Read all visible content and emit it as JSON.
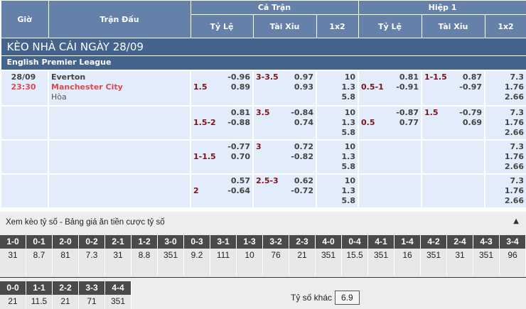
{
  "header": {
    "time": "Giờ",
    "match": "Trận Đấu",
    "full": "Cả Trận",
    "half": "Hiệp 1",
    "sub": [
      "Tỷ Lệ",
      "Tài Xỉu",
      "1x2",
      "Tỷ Lệ",
      "Tài Xỉu",
      "1x2"
    ]
  },
  "title": "KÈO NHÀ CÁI NGÀY 28/09",
  "league": "English Premier League",
  "match": {
    "date": "28/09",
    "time": "23:30",
    "home": "Everton",
    "away": "Manchester City",
    "draw": "Hòa"
  },
  "rows": [
    {
      "hc_line": "1.5",
      "hc_top": "-0.96",
      "hc_bot": "0.89",
      "ou_line": "3-3.5",
      "ou_top": "0.97",
      "ou_bot": "0.93",
      "x12": [
        "10",
        "1.3",
        "5.8"
      ],
      "h1_hc_line": "0.5-1",
      "h1_hc_top": "0.81",
      "h1_hc_bot": "-0.91",
      "h1_ou_line": "1-1.5",
      "h1_ou_top": "0.87",
      "h1_ou_bot": "-0.97",
      "h1_x12": [
        "7.3",
        "1.76",
        "2.66"
      ]
    },
    {
      "hc_line": "1.5-2",
      "hc_top": "0.81",
      "hc_bot": "-0.88",
      "ou_line": "3.5",
      "ou_top": "-0.84",
      "ou_bot": "0.74",
      "x12": [
        "10",
        "1.3",
        "5.8"
      ],
      "h1_hc_line": "0.5",
      "h1_hc_top": "-0.87",
      "h1_hc_bot": "0.77",
      "h1_ou_line": "1.5",
      "h1_ou_top": "-0.79",
      "h1_ou_bot": "0.69",
      "h1_x12": [
        "7.3",
        "1.76",
        "2.66"
      ]
    },
    {
      "hc_line": "1-1.5",
      "hc_top": "-0.77",
      "hc_bot": "0.70",
      "ou_line": "3",
      "ou_top": "0.72",
      "ou_bot": "-0.82",
      "x12": [
        "10",
        "1.3",
        "5.8"
      ],
      "h1_hc_line": "",
      "h1_hc_top": "",
      "h1_hc_bot": "",
      "h1_ou_line": "",
      "h1_ou_top": "",
      "h1_ou_bot": "",
      "h1_x12": [
        "7.3",
        "1.76",
        "2.66"
      ]
    },
    {
      "hc_line": "2",
      "hc_top": "0.57",
      "hc_bot": "-0.64",
      "ou_line": "2.5-3",
      "ou_top": "0.62",
      "ou_bot": "-0.72",
      "x12": [
        "10",
        "1.3",
        "5.8"
      ],
      "h1_hc_line": "",
      "h1_hc_top": "",
      "h1_hc_bot": "",
      "h1_ou_line": "",
      "h1_ou_top": "",
      "h1_ou_bot": "",
      "h1_x12": [
        "7.3",
        "1.76",
        "2.66"
      ]
    }
  ],
  "score": {
    "title": "Xem kèo tỷ số - Bảng giá ăn tiền cược tỷ số",
    "toggle_icon": "triangle-up",
    "row1": [
      [
        "1-0",
        "31"
      ],
      [
        "0-1",
        "8.7"
      ],
      [
        "2-0",
        "81"
      ],
      [
        "0-2",
        "7.3"
      ],
      [
        "2-1",
        "31"
      ],
      [
        "1-2",
        "8.8"
      ],
      [
        "3-0",
        "351"
      ],
      [
        "0-3",
        "9.2"
      ],
      [
        "3-1",
        "111"
      ],
      [
        "1-3",
        "10"
      ],
      [
        "3-2",
        "76"
      ],
      [
        "2-3",
        "21"
      ],
      [
        "4-0",
        "351"
      ],
      [
        "0-4",
        "15.5"
      ],
      [
        "4-1",
        "351"
      ],
      [
        "1-4",
        "16"
      ],
      [
        "4-2",
        "351"
      ],
      [
        "2-4",
        "31"
      ],
      [
        "4-3",
        "351"
      ],
      [
        "3-4",
        "96"
      ]
    ],
    "row2": [
      [
        "0-0",
        "21"
      ],
      [
        "1-1",
        "11.5"
      ],
      [
        "2-2",
        "21"
      ],
      [
        "3-3",
        "71"
      ],
      [
        "4-4",
        "351"
      ]
    ],
    "other_label": "Tỷ số khác",
    "other_value": "6.9"
  }
}
